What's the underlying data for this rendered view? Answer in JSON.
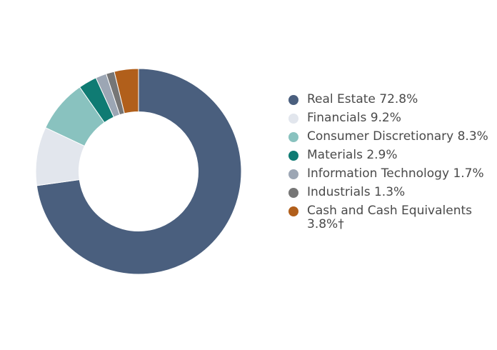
{
  "chart_data": {
    "type": "pie",
    "title": "",
    "legend_position": "right",
    "categories": [
      "Real Estate 72.8%",
      "Financials 9.2%",
      "Consumer Discretionary 8.3%",
      "Materials 2.9%",
      "Information Technology 1.7%",
      "Industrials 1.3%",
      "Cash and Cash Equivalents 3.8%†"
    ],
    "values": [
      72.8,
      9.2,
      8.3,
      2.9,
      1.7,
      1.3,
      3.8
    ],
    "colors": [
      "#4a5f7e",
      "#e2e6ed",
      "#89c2bf",
      "#0f7b73",
      "#9ca6b4",
      "#767676",
      "#b15f1b"
    ],
    "hole_ratio": 0.58
  }
}
